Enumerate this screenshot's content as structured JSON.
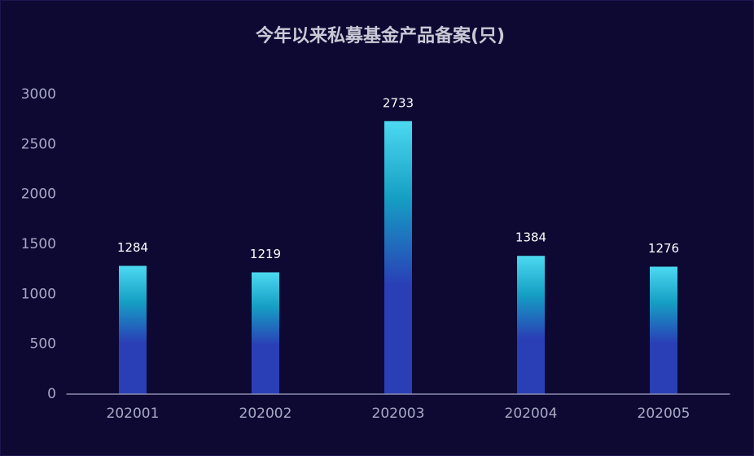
{
  "chart_data": {
    "type": "bar",
    "title": "今年以来私募基金产品备案(只)",
    "categories": [
      "202001",
      "202002",
      "202003",
      "202004",
      "202005"
    ],
    "values": [
      1284,
      1219,
      2733,
      1384,
      1276
    ],
    "colors": [
      "#4cd9f1",
      "#159fc4",
      "#2a3fb6"
    ],
    "ylim": [
      0,
      3000
    ],
    "yticks": [
      0,
      500,
      1000,
      1500,
      2000,
      2500,
      3000
    ],
    "grid": false
  }
}
